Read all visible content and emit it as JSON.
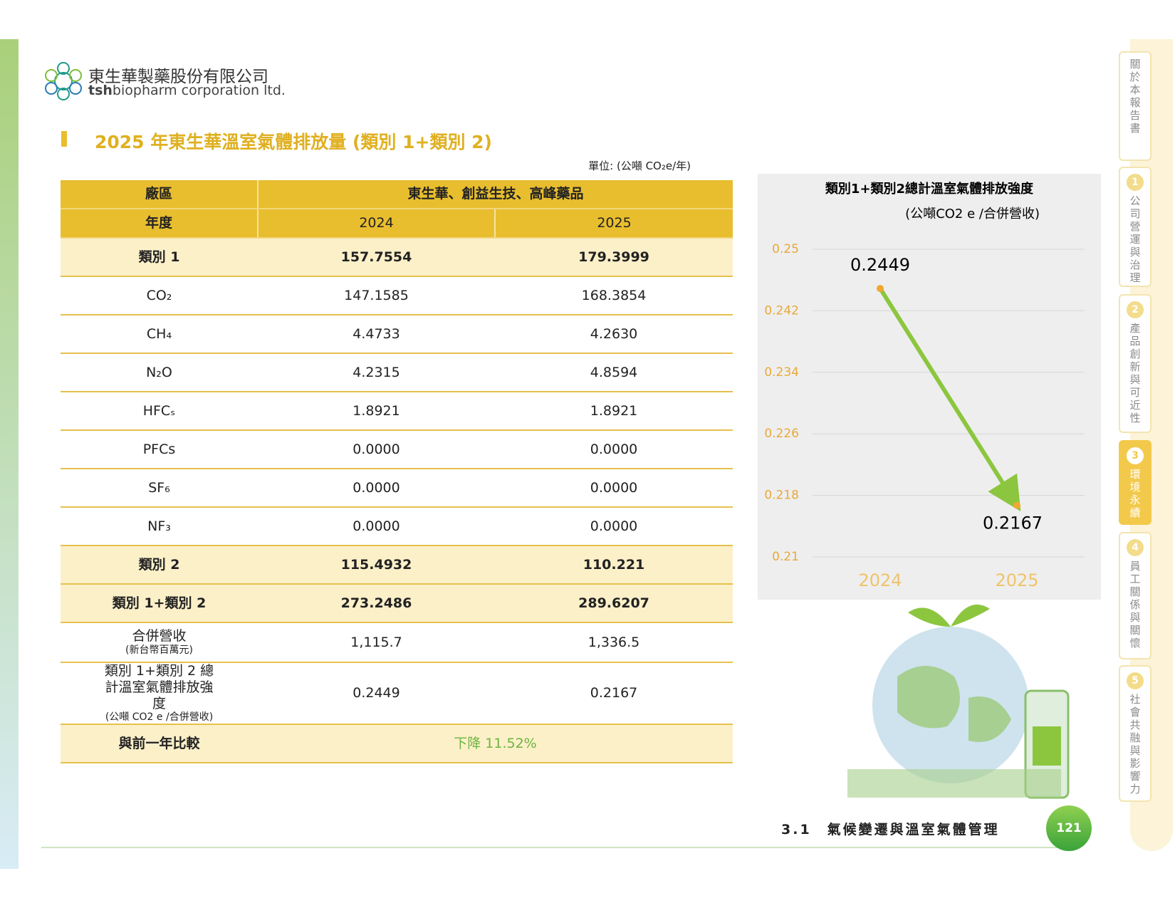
{
  "header": {
    "brand_zh": "東生華製藥股份有限公司",
    "brand_en_bold": "tsh",
    "brand_en": "biopharm corporation ltd."
  },
  "title": "2025 年東生華溫室氣體排放量 (類別 1+類別 2)",
  "unit": "單位: (公噸 CO₂e/年)",
  "table": {
    "header_rows": [
      [
        "廠區",
        "東生華、創益生技、高峰藥品"
      ],
      [
        "年度",
        "2024",
        "2025"
      ]
    ],
    "rows": [
      {
        "label": "類別 1",
        "values": [
          "157.7554",
          "179.3999"
        ]
      },
      {
        "label": "CO₂",
        "values": [
          "147.1585",
          "168.3854"
        ]
      },
      {
        "label": "CH₄",
        "values": [
          "4.4733",
          "4.2630"
        ]
      },
      {
        "label": "N₂O",
        "values": [
          "4.2315",
          "4.8594"
        ]
      },
      {
        "label": "HFCₛ",
        "values": [
          "1.8921",
          "1.8921"
        ]
      },
      {
        "label": "PFCs",
        "values": [
          "0.0000",
          "0.0000"
        ]
      },
      {
        "label": "SF₆",
        "values": [
          "0.0000",
          "0.0000"
        ]
      },
      {
        "label": "NF₃",
        "values": [
          "0.0000",
          "0.0000"
        ]
      },
      {
        "label": "類別 2",
        "values": [
          "115.4932",
          "110.221"
        ]
      },
      {
        "label": "類別 1+類別 2",
        "values": [
          "273.2486",
          "289.6207"
        ]
      },
      {
        "label": "合併營收",
        "note": "(新台幣百萬元)",
        "values": [
          "1,115.7",
          "1,336.5"
        ]
      },
      {
        "label": "類別 1+類別 2 總計溫室氣體排放強度",
        "note": "(公噸 CO2 e /合併營收)",
        "values": [
          "0.2449",
          "0.2167"
        ]
      }
    ],
    "comparison": {
      "label": "與前一年比較",
      "value": "下降 11.52%"
    }
  },
  "chart_data": {
    "type": "line",
    "title": "類別1+類別2總計溫室氣體排放強度",
    "subtitle": "(公噸CO2 e /合併營收)",
    "categories": [
      "2024",
      "2025"
    ],
    "values": [
      0.2449,
      0.2167
    ],
    "color": "#8cc63f",
    "point_color": "#f0a830",
    "ylim": [
      0.21,
      0.25
    ],
    "yticks": [
      0.21,
      0.218,
      0.226,
      0.234,
      0.242,
      0.25
    ],
    "grid": true
  },
  "sidebar": {
    "tabs": [
      {
        "label": "關於本報告書"
      },
      {
        "number": "1",
        "label": "公司營運與治理"
      },
      {
        "number": "2",
        "label": "產品創新與可近性"
      },
      {
        "number": "3",
        "label": "環境永續"
      },
      {
        "number": "4",
        "label": "員工關係與關懷"
      },
      {
        "number": "5",
        "label": "社會共融與影響力"
      }
    ]
  },
  "footer": {
    "section": "3.1　氣候變遷與溫室氣體管理",
    "page": "121"
  }
}
